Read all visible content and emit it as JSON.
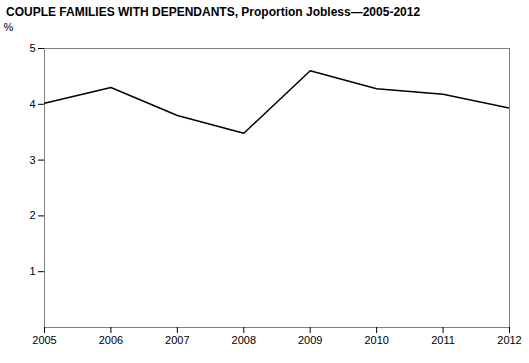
{
  "chart_data": {
    "type": "line",
    "title": "COUPLE FAMILIES WITH DEPENDANTS, Proportion Jobless—2005-2012",
    "x": [
      2005,
      2006,
      2007,
      2008,
      2009,
      2010,
      2011,
      2012
    ],
    "values": [
      4.02,
      4.3,
      3.8,
      3.48,
      4.6,
      4.28,
      4.18,
      3.93
    ],
    "color": "#000000",
    "ylabel": "%",
    "xlim": [
      2005,
      2012
    ],
    "xticks": [
      2005,
      2006,
      2007,
      2008,
      2009,
      2010,
      2011,
      2012
    ],
    "ylim": [
      0,
      5
    ],
    "yticks": [
      1,
      2,
      3,
      4,
      5
    ],
    "grid": false
  }
}
